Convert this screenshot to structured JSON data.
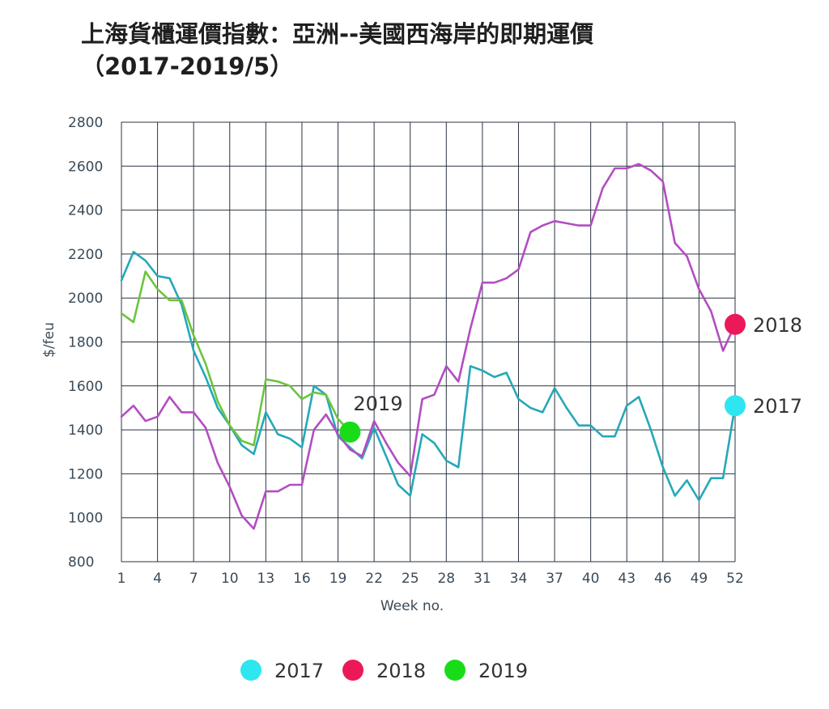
{
  "chart_data": {
    "type": "line",
    "title": [
      "上海貨櫃運價指數：亞洲--美國西海岸的即期運價",
      "（2017-2019/5）"
    ],
    "xlabel": "Week no.",
    "ylabel": "$/feu",
    "xlim": [
      1,
      52
    ],
    "ylim": [
      800,
      2800
    ],
    "yticks": [
      800,
      1000,
      1200,
      1400,
      1600,
      1800,
      2000,
      2200,
      2400,
      2600,
      2800
    ],
    "xticks": [
      1,
      4,
      7,
      10,
      13,
      16,
      19,
      22,
      25,
      28,
      31,
      34,
      37,
      40,
      43,
      46,
      49,
      52
    ],
    "grid": true,
    "legend_position": "bottom",
    "series": [
      {
        "name": "2017",
        "color": "#25a8b8",
        "marker_color": "#2ee6f0",
        "end_label": "2017",
        "values": [
          2080,
          2210,
          2170,
          2100,
          2090,
          1970,
          1760,
          1640,
          1500,
          1420,
          1330,
          1290,
          1480,
          1380,
          1360,
          1320,
          1600,
          1560,
          1370,
          1320,
          1270,
          1410,
          1280,
          1150,
          1100,
          1380,
          1340,
          1260,
          1230,
          1690,
          1670,
          1640,
          1660,
          1540,
          1500,
          1480,
          1590,
          1500,
          1420,
          1420,
          1370,
          1370,
          1510,
          1550,
          1400,
          1230,
          1100,
          1170,
          1080,
          1180,
          1180,
          1510
        ]
      },
      {
        "name": "2018",
        "color": "#b34dc2",
        "marker_color": "#ec1958",
        "end_label": "2018",
        "values": [
          1460,
          1510,
          1440,
          1460,
          1550,
          1480,
          1480,
          1410,
          1250,
          1140,
          1010,
          950,
          1120,
          1120,
          1150,
          1150,
          1400,
          1470,
          1380,
          1310,
          1280,
          1440,
          1340,
          1250,
          1190,
          1540,
          1560,
          1690,
          1620,
          1860,
          2070,
          2070,
          2090,
          2130,
          2300,
          2330,
          2350,
          2340,
          2330,
          2330,
          2500,
          2590,
          2590,
          2610,
          2580,
          2530,
          2250,
          2190,
          2040,
          1940,
          1760,
          1880
        ]
      },
      {
        "name": "2019",
        "color": "#6cc43f",
        "marker_color": "#19dc19",
        "end_label": "2019",
        "values": [
          1930,
          1890,
          2120,
          2040,
          1990,
          1990,
          1830,
          1700,
          1530,
          1420,
          1350,
          1330,
          1630,
          1620,
          1600,
          1540,
          1570,
          1560,
          1450,
          1390
        ]
      }
    ]
  }
}
